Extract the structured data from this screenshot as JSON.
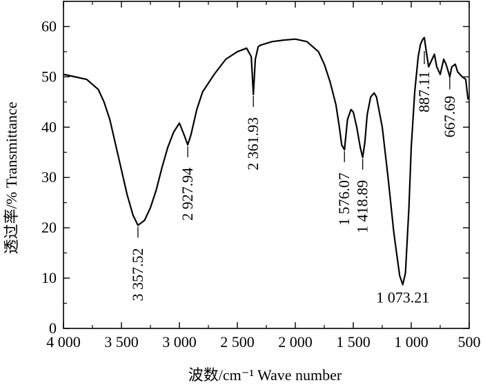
{
  "chart_data": {
    "type": "line",
    "xlabel": "波数/cm⁻¹   Wave number",
    "ylabel": "透过率/%  Transmittance",
    "xlim": [
      4000,
      500
    ],
    "ylim": [
      0,
      65
    ],
    "x_axis_reversed": true,
    "grid": false,
    "legend": "none",
    "xticks": [
      4000,
      3500,
      3000,
      2500,
      2000,
      1500,
      1000,
      500
    ],
    "xtick_labels": [
      "4 000",
      "3 500",
      "3 000",
      "2 500",
      "2 000",
      "1 500",
      "1 000",
      "500"
    ],
    "yticks": [
      0,
      10,
      20,
      30,
      40,
      50,
      60
    ],
    "ytick_labels": [
      "0",
      "10",
      "20",
      "30",
      "40",
      "50",
      "60"
    ],
    "series": [
      {
        "x": [
          4000,
          3900,
          3800,
          3750,
          3700,
          3650,
          3600,
          3550,
          3500,
          3450,
          3400,
          3357.52,
          3300,
          3250,
          3200,
          3150,
          3100,
          3050,
          3000,
          2960,
          2927.94,
          2900,
          2850,
          2800,
          2700,
          2600,
          2500,
          2420,
          2380,
          2361.93,
          2345,
          2320,
          2300,
          2200,
          2100,
          2000,
          1900,
          1800,
          1750,
          1700,
          1650,
          1620,
          1600,
          1576.07,
          1550,
          1520,
          1500,
          1470,
          1440,
          1418.89,
          1400,
          1380,
          1350,
          1320,
          1300,
          1250,
          1200,
          1150,
          1100,
          1073.21,
          1050,
          1020,
          1000,
          970,
          940,
          920,
          900,
          887.11,
          870,
          850,
          820,
          800,
          780,
          750,
          720,
          700,
          680,
          667.69,
          650,
          620,
          600,
          560,
          530,
          510
        ],
        "y": [
          50.5,
          50.0,
          49.5,
          48.5,
          47.5,
          45.0,
          41.5,
          36.5,
          31.5,
          26.5,
          22.5,
          20.5,
          21.5,
          24.0,
          27.5,
          32.0,
          36.0,
          39.0,
          40.8,
          38.5,
          36.5,
          38.5,
          43.5,
          47.0,
          50.5,
          53.5,
          55.0,
          55.7,
          54.0,
          46.5,
          53.5,
          56.0,
          56.3,
          57.0,
          57.3,
          57.5,
          57.0,
          55.0,
          52.5,
          49.0,
          44.5,
          40.0,
          36.5,
          35.5,
          41.5,
          43.5,
          43.0,
          40.0,
          36.0,
          34.0,
          37.0,
          42.5,
          46.0,
          46.8,
          46.0,
          40.0,
          30.0,
          19.0,
          10.5,
          8.7,
          11.0,
          24.0,
          36.0,
          47.0,
          54.0,
          56.5,
          57.5,
          57.8,
          55.0,
          52.0,
          53.5,
          54.5,
          52.0,
          50.5,
          53.5,
          52.5,
          51.0,
          50.0,
          52.0,
          52.5,
          51.0,
          50.0,
          49.5,
          45.5
        ]
      }
    ],
    "annotations": [
      {
        "label": "3 357.52",
        "x": 3357.52,
        "y": 20.5
      },
      {
        "label": "2 927.94",
        "x": 2927.94,
        "y": 36.5
      },
      {
        "label": "2 361.93",
        "x": 2361.93,
        "y": 46.5
      },
      {
        "label": "1 576.07",
        "x": 1576.07,
        "y": 35.5
      },
      {
        "label": "1 418.89",
        "x": 1418.89,
        "y": 34.0
      },
      {
        "label": "1 073.21",
        "x": 1073.21,
        "y": 8.7
      },
      {
        "label": "887.11",
        "x": 887.11,
        "y": 55.0
      },
      {
        "label": "667.69",
        "x": 667.69,
        "y": 50.0
      }
    ]
  }
}
